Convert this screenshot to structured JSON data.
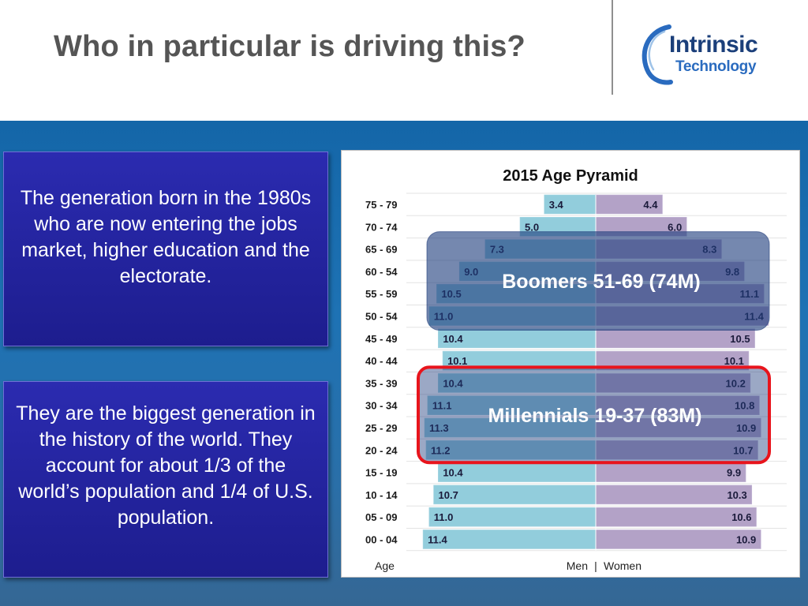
{
  "slide": {
    "title": "Who in particular is driving this?",
    "logo": {
      "line1": "Intrinsic",
      "line2": "Technology"
    },
    "text_boxes": [
      "The generation born in the 1980s who are now entering the jobs market, higher education and the electorate.",
      "They are the biggest generation in the history of the world.  They account for about 1/3 of the world’s population and 1/4 of U.S. population."
    ],
    "colors": {
      "panel": "#1466a8",
      "textbox": "#23239f",
      "men_bar": "#92cddc",
      "women_bar": "#b3a2c7",
      "highlight_red": "#e8141c",
      "title": "#555555"
    }
  },
  "chart_data": {
    "type": "bar",
    "orientation": "horizontal-pyramid",
    "title": "2015 Age Pyramid",
    "ylabel": "Age",
    "xlabel_left": "Men",
    "xlabel_separator": "|",
    "xlabel_right": "Women",
    "categories": [
      "75 - 79",
      "70 - 74",
      "65 - 69",
      "60 - 54",
      "55 - 59",
      "50 - 54",
      "45 - 49",
      "40 - 44",
      "35 - 39",
      "30 - 34",
      "25 - 29",
      "20 - 24",
      "15 - 19",
      "10 - 14",
      "05 - 09",
      "00 - 04"
    ],
    "series": [
      {
        "values": [
          3.4,
          5.0,
          7.3,
          9.0,
          10.5,
          11.0,
          10.4,
          10.1,
          10.4,
          11.1,
          11.3,
          11.2,
          10.4,
          10.7,
          11.0,
          11.4
        ],
        "color": "#92cddc"
      },
      {
        "values": [
          4.4,
          6.0,
          8.3,
          9.8,
          11.1,
          11.4,
          10.5,
          10.1,
          10.2,
          10.8,
          10.9,
          10.7,
          9.9,
          10.3,
          10.6,
          10.9
        ],
        "color": "#b3a2c7"
      }
    ],
    "xlim": [
      0,
      12
    ],
    "grid": true,
    "annotations": [
      {
        "text": "Boomers 51-69 (74M)",
        "rows": [
          2,
          5
        ],
        "style": "dark-overlay"
      },
      {
        "text": "Millennials 19-37 (83M)",
        "rows": [
          8,
          11
        ],
        "style": "red-outline"
      }
    ]
  }
}
